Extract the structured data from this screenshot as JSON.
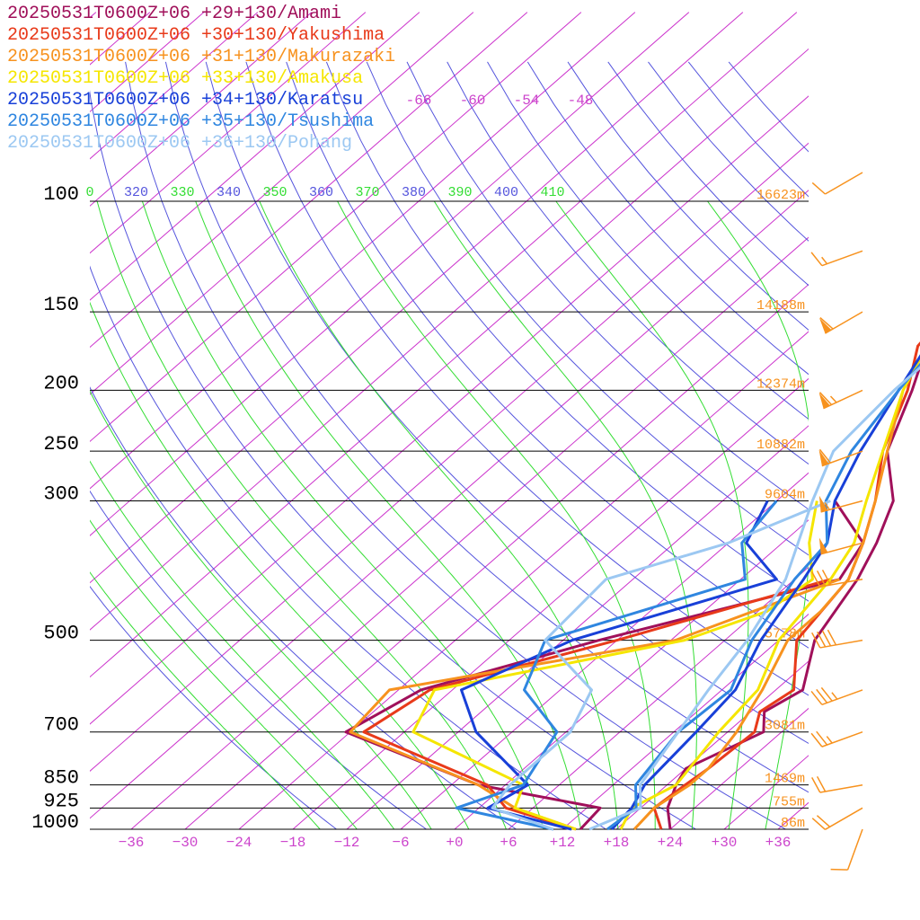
{
  "chart_data": {
    "type": "line",
    "title": "",
    "xlabel": "",
    "ylabel": "",
    "p_ticks": [
      100,
      150,
      200,
      250,
      300,
      500,
      700,
      850,
      925,
      1000
    ],
    "p_labels": [
      "100",
      "150",
      "200",
      "250",
      "300",
      "500",
      "700",
      "850",
      "925",
      "1000"
    ],
    "xlim": [
      -36,
      36
    ],
    "ylim": [
      1000,
      100
    ],
    "t_ticks": [
      -36,
      -30,
      -24,
      -18,
      -12,
      -6,
      0,
      6,
      12,
      18,
      24,
      30,
      36
    ],
    "t_labels": [
      "−36",
      "−30",
      "−24",
      "−18",
      "−12",
      "−6",
      "+0",
      "+6",
      "+12",
      "+18",
      "+24",
      "+30",
      "+36"
    ],
    "upper_t_labels": [
      "-66",
      "-60",
      "-54",
      "-48"
    ],
    "theta_labels": [
      "0",
      "320",
      "330",
      "340",
      "350",
      "360",
      "370",
      "380",
      "390",
      "400",
      "410"
    ],
    "heights": [
      {
        "p": 100,
        "label": "16623m"
      },
      {
        "p": 150,
        "label": "14188m"
      },
      {
        "p": 200,
        "label": "12374m"
      },
      {
        "p": 250,
        "label": "10882m"
      },
      {
        "p": 300,
        "label": "9604m"
      },
      {
        "p": 500,
        "label": "5778m"
      },
      {
        "p": 700,
        "label": "3081m"
      },
      {
        "p": 850,
        "label": "1469m"
      },
      {
        "p": 925,
        "label": "755m"
      },
      {
        "p": 1000,
        "label": "86m"
      }
    ],
    "series": [
      {
        "name": "20250531T0600Z+06 +29+130/Amami",
        "color": "#a0105a",
        "temp": [
          [
            1000,
            24
          ],
          [
            925,
            21
          ],
          [
            850,
            19
          ],
          [
            800,
            18
          ],
          [
            700,
            22
          ],
          [
            650,
            19.5
          ],
          [
            600,
            21
          ],
          [
            500,
            16
          ],
          [
            400,
            13
          ],
          [
            350,
            10.5
          ],
          [
            300,
            7
          ],
          [
            250,
            0
          ],
          [
            200,
            -5
          ],
          [
            170,
            -9
          ],
          [
            150,
            -11
          ],
          [
            130,
            -14
          ],
          [
            100,
            -7
          ]
        ],
        "dew": [
          [
            1000,
            14
          ],
          [
            925,
            13.5
          ],
          [
            850,
            -3
          ],
          [
            700,
            -24.5
          ],
          [
            600,
            -21.5
          ],
          [
            500,
            -8
          ],
          [
            400,
            11
          ],
          [
            350,
            9
          ],
          [
            300,
            0.5
          ]
        ]
      },
      {
        "name": "20250531T0600Z+06 +30+130/Yakushima",
        "color": "#e83a1a",
        "temp": [
          [
            1000,
            23
          ],
          [
            925,
            19.5
          ],
          [
            850,
            20
          ],
          [
            800,
            20.5
          ],
          [
            700,
            21
          ],
          [
            650,
            19
          ],
          [
            600,
            20
          ],
          [
            500,
            14
          ],
          [
            400,
            12
          ],
          [
            350,
            9
          ],
          [
            300,
            5
          ],
          [
            250,
            -0.5
          ],
          [
            200,
            -5.5
          ],
          [
            170,
            -10
          ],
          [
            150,
            -11
          ],
          [
            130,
            -12
          ],
          [
            100,
            -4
          ]
        ],
        "dew": [
          [
            1000,
            13.5
          ],
          [
            925,
            3
          ],
          [
            850,
            -2
          ],
          [
            700,
            -22.5
          ],
          [
            600,
            -20.5
          ],
          [
            500,
            -6
          ],
          [
            400,
            10
          ]
        ]
      },
      {
        "name": "20250531T0600Z+06 +31+130/Makurazaki",
        "color": "#f7921e",
        "temp": [
          [
            1000,
            20
          ],
          [
            925,
            19.5
          ],
          [
            850,
            20.5
          ],
          [
            800,
            20.5
          ],
          [
            700,
            19
          ],
          [
            600,
            16.5
          ],
          [
            500,
            13
          ],
          [
            450,
            13
          ],
          [
            400,
            12
          ],
          [
            350,
            9
          ],
          [
            300,
            5
          ],
          [
            250,
            0
          ],
          [
            200,
            -6
          ],
          [
            170,
            -9
          ],
          [
            150,
            -9
          ],
          [
            130,
            -8
          ],
          [
            100,
            -1
          ]
        ],
        "dew": [
          [
            1000,
            13.5
          ],
          [
            925,
            4
          ],
          [
            850,
            -3
          ],
          [
            700,
            -24
          ],
          [
            600,
            -25
          ],
          [
            500,
            0.5
          ],
          [
            400,
            11
          ]
        ]
      },
      {
        "name": "20250531T0600Z+06 +33+130/Amakusa",
        "color": "#f5e600",
        "temp": [
          [
            1000,
            18.5
          ],
          [
            925,
            17
          ],
          [
            850,
            19
          ],
          [
            700,
            17
          ],
          [
            600,
            16
          ],
          [
            500,
            12
          ],
          [
            400,
            10
          ],
          [
            350,
            8
          ],
          [
            300,
            4
          ],
          [
            250,
            -0.5
          ],
          [
            200,
            -6
          ],
          [
            170,
            -9
          ],
          [
            150,
            -8.5
          ],
          [
            130,
            -5
          ],
          [
            100,
            0
          ]
        ],
        "dew": [
          [
            1000,
            13.5
          ],
          [
            925,
            4
          ],
          [
            850,
            2
          ],
          [
            700,
            -17
          ],
          [
            600,
            -20
          ],
          [
            500,
            1.5
          ],
          [
            450,
            7
          ],
          [
            400,
            8
          ],
          [
            350,
            3
          ],
          [
            300,
            -1.5
          ]
        ]
      },
      {
        "name": "20250531T0600Z+06 +34+130/Karatsu",
        "color": "#1840d8",
        "temp": [
          [
            1000,
            17.5
          ],
          [
            925,
            17
          ],
          [
            850,
            15.5
          ],
          [
            700,
            14.5
          ],
          [
            600,
            13.5
          ],
          [
            500,
            10
          ],
          [
            400,
            7
          ],
          [
            350,
            5
          ],
          [
            300,
            0.5
          ],
          [
            250,
            -3
          ],
          [
            200,
            -6.5
          ],
          [
            170,
            -9
          ],
          [
            150,
            -8
          ],
          [
            130,
            -3
          ],
          [
            100,
            3
          ]
        ],
        "dew": [
          [
            1000,
            13
          ],
          [
            925,
            1
          ],
          [
            850,
            2.5
          ],
          [
            700,
            -10
          ],
          [
            600,
            -17
          ],
          [
            500,
            -11
          ],
          [
            400,
            4
          ],
          [
            350,
            -4
          ],
          [
            300,
            -7
          ]
        ]
      },
      {
        "name": "20250531T0600Z+06 +35+130/Tsushima",
        "color": "#2f86e0",
        "temp": [
          [
            1000,
            17
          ],
          [
            925,
            17.5
          ],
          [
            850,
            14.5
          ],
          [
            700,
            12.5
          ],
          [
            600,
            13
          ],
          [
            500,
            9
          ],
          [
            400,
            6
          ],
          [
            350,
            5
          ],
          [
            300,
            -0.5
          ],
          [
            250,
            -4
          ],
          [
            200,
            -6.5
          ],
          [
            170,
            -8
          ],
          [
            150,
            -7
          ],
          [
            130,
            -2
          ],
          [
            100,
            4
          ]
        ],
        "dew": [
          [
            1000,
            11
          ],
          [
            925,
            -2.5
          ],
          [
            850,
            2
          ],
          [
            700,
            -1
          ],
          [
            600,
            -10
          ],
          [
            500,
            -14
          ],
          [
            400,
            0.5
          ],
          [
            350,
            -4.5
          ],
          [
            300,
            -6
          ]
        ]
      },
      {
        "name": "20250531T0600Z+06 +36+130/Pohang",
        "color": "#9cc8f2",
        "temp": [
          [
            1000,
            15
          ],
          [
            925,
            18
          ],
          [
            850,
            15
          ],
          [
            700,
            12.5
          ],
          [
            600,
            10.5
          ],
          [
            500,
            8.5
          ],
          [
            400,
            5
          ],
          [
            300,
            -2
          ],
          [
            250,
            -6
          ],
          [
            200,
            -7
          ],
          [
            170,
            -7
          ],
          [
            150,
            -4.5
          ],
          [
            130,
            -0.5
          ],
          [
            100,
            6
          ]
        ],
        "dew": [
          [
            1000,
            11
          ],
          [
            925,
            1.5
          ],
          [
            850,
            0.5
          ],
          [
            700,
            0.5
          ],
          [
            600,
            -2.5
          ],
          [
            500,
            -14
          ],
          [
            400,
            -15
          ],
          [
            350,
            -6
          ],
          [
            300,
            0
          ]
        ]
      }
    ],
    "wind_color": "#f7921e",
    "wind_barbs": [
      {
        "p": 1000,
        "dir": 200,
        "speed": 10
      },
      {
        "p": 925,
        "dir": 240,
        "speed": 20
      },
      {
        "p": 850,
        "dir": 260,
        "speed": 20
      },
      {
        "p": 700,
        "dir": 250,
        "speed": 25
      },
      {
        "p": 600,
        "dir": 250,
        "speed": 35
      },
      {
        "p": 500,
        "dir": 260,
        "speed": 40
      },
      {
        "p": 400,
        "dir": 260,
        "speed": 30
      },
      {
        "p": 350,
        "dir": 255,
        "speed": 50
      },
      {
        "p": 300,
        "dir": 255,
        "speed": 55
      },
      {
        "p": 250,
        "dir": 250,
        "speed": 60
      },
      {
        "p": 200,
        "dir": 245,
        "speed": 65
      },
      {
        "p": 150,
        "dir": 240,
        "speed": 60
      },
      {
        "p": 120,
        "dir": 250,
        "speed": 15
      },
      {
        "p": 90,
        "dir": 240,
        "speed": 10
      }
    ],
    "colors": {
      "isotherm": "#cc33cc",
      "dry_adiabat": "#5555dd",
      "moist_adiabat": "#33dd33",
      "isobar": "#000000",
      "tick_label": "#cc44cc",
      "height_label": "#f7921e"
    }
  }
}
